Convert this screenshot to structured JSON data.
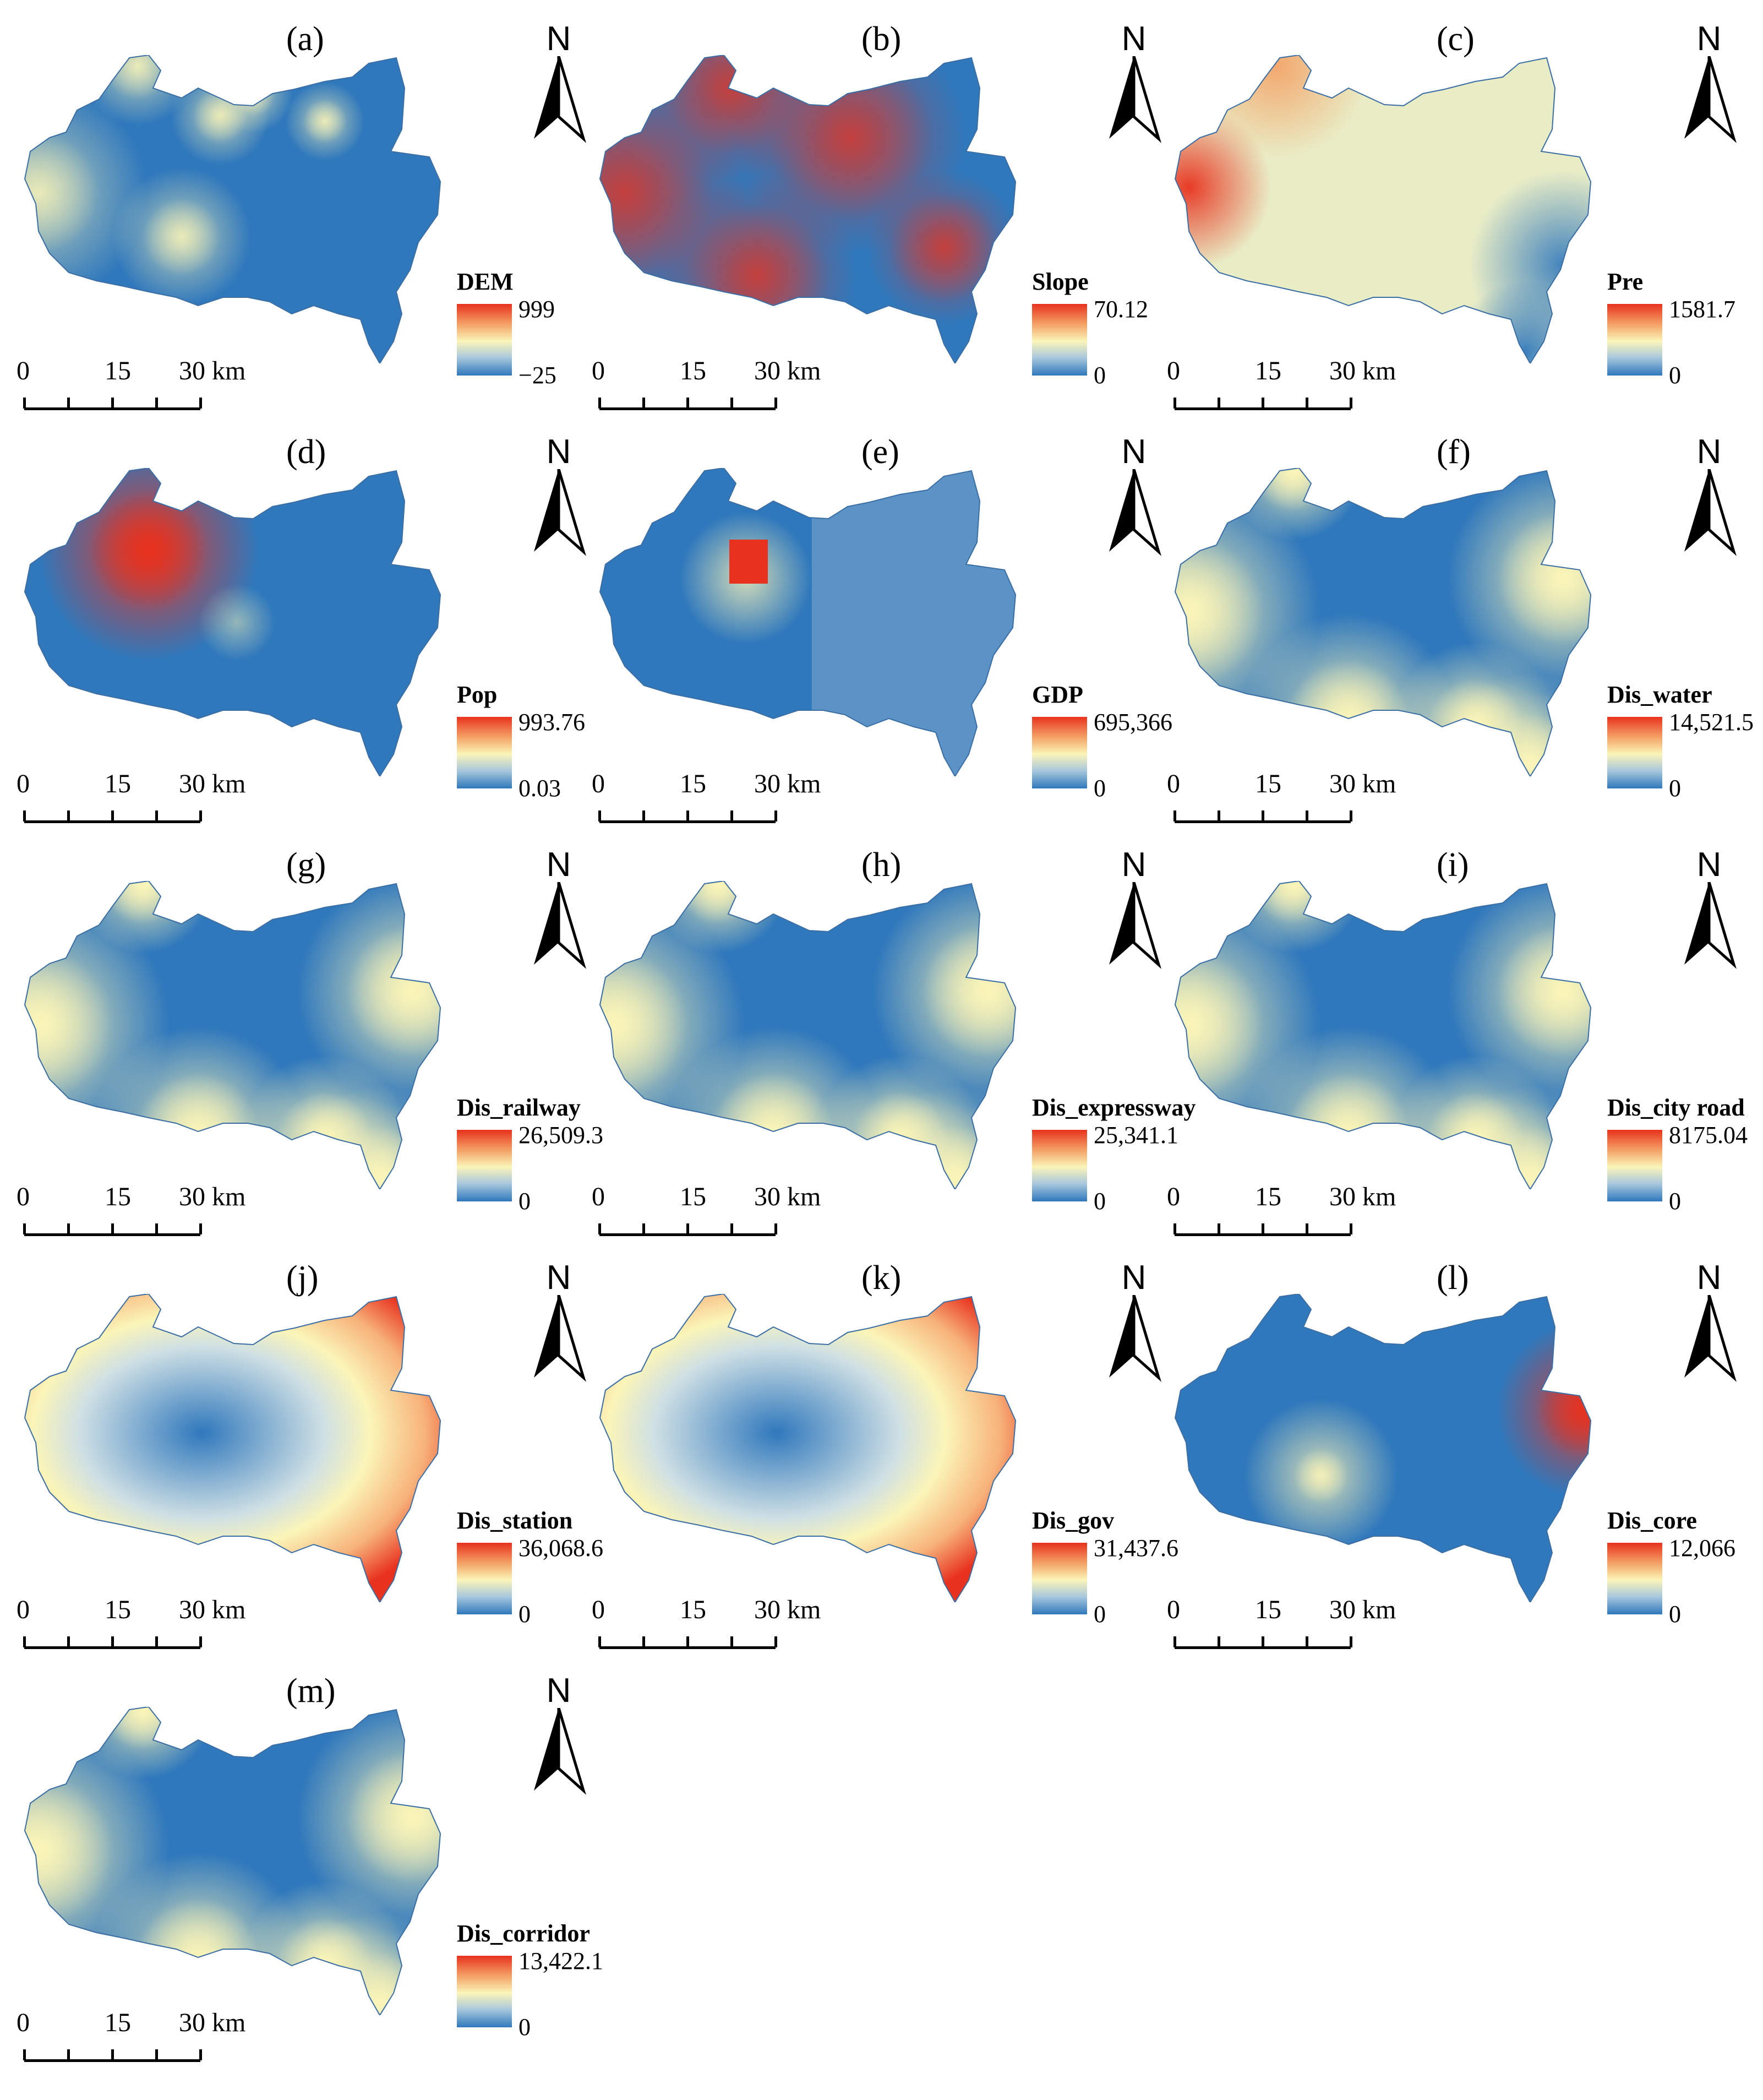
{
  "panels": [
    {
      "label": "(a)",
      "legend_title": "DEM",
      "legend_max": "999",
      "legend_min": "−25",
      "scheme": "terrain"
    },
    {
      "label": "(b)",
      "legend_title": "Slope",
      "legend_max": "70.12",
      "legend_min": "0",
      "scheme": "slope"
    },
    {
      "label": "(c)",
      "legend_title": "Pre",
      "legend_max": "1581.7",
      "legend_min": "0",
      "scheme": "pre"
    },
    {
      "label": "(d)",
      "legend_title": "Pop",
      "legend_max": "993.76",
      "legend_min": "0.03",
      "scheme": "pop"
    },
    {
      "label": "(e)",
      "legend_title": "GDP",
      "legend_max": "695,366",
      "legend_min": "0",
      "scheme": "gdp"
    },
    {
      "label": "(f)",
      "legend_title": "Dis_water",
      "legend_max": "14,521.5",
      "legend_min": "0",
      "scheme": "distance"
    },
    {
      "label": "(g)",
      "legend_title": "Dis_railway",
      "legend_max": "26,509.3",
      "legend_min": "0",
      "scheme": "distance"
    },
    {
      "label": "(h)",
      "legend_title": "Dis_expressway",
      "legend_max": "25,341.1",
      "legend_min": "0",
      "scheme": "distance"
    },
    {
      "label": "(i)",
      "legend_title": "Dis_city road",
      "legend_max": "8175.04",
      "legend_min": "0",
      "scheme": "distance"
    },
    {
      "label": "(j)",
      "legend_title": "Dis_station",
      "legend_max": "36,068.6",
      "legend_min": "0",
      "scheme": "radial"
    },
    {
      "label": "(k)",
      "legend_title": "Dis_gov",
      "legend_max": "31,437.6",
      "legend_min": "0",
      "scheme": "radial"
    },
    {
      "label": "(l)",
      "legend_title": "Dis_core",
      "legend_max": "12,066",
      "legend_min": "0",
      "scheme": "core"
    },
    {
      "label": "(m)",
      "legend_title": "Dis_corridor",
      "legend_max": "13,422.1",
      "legend_min": "0",
      "scheme": "distance"
    }
  ],
  "north_label": "N",
  "scale": {
    "labels": [
      "0",
      "15",
      "30 km"
    ]
  },
  "colors": {
    "low": "#2f78bc",
    "mid": "#fbf5b8",
    "high": "#e8321e"
  }
}
